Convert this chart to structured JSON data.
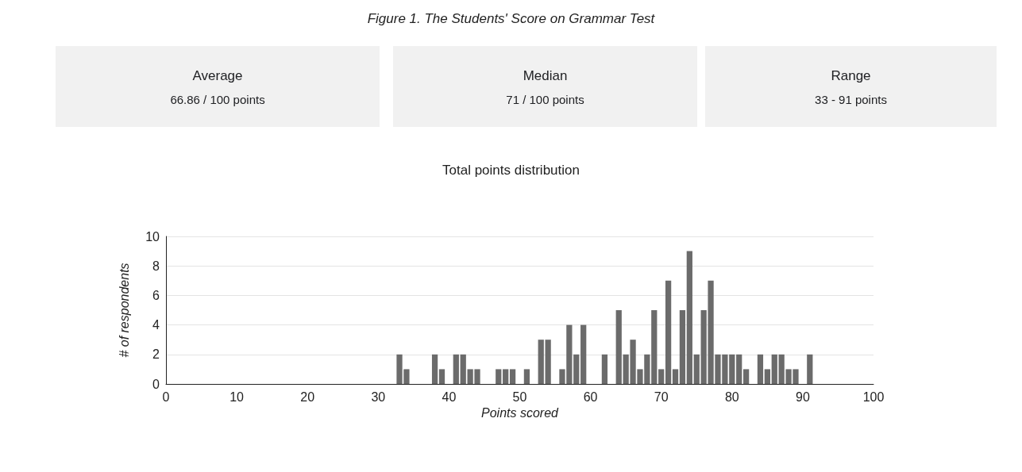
{
  "chart_data": {
    "type": "bar",
    "title": "Figure 1. The Students' Score on Grammar Test",
    "subtitle": "Total points distribution",
    "xlabel": "Points scored",
    "ylabel": "# of respondents",
    "annotations": [
      "Average",
      "66.86 / 100 points",
      "Median",
      "71 / 100 points",
      "Range",
      "33 - 91 points"
    ],
    "x": [
      33,
      34,
      38,
      39,
      41,
      42,
      43,
      44,
      47,
      48,
      49,
      51,
      53,
      54,
      56,
      57,
      58,
      59,
      62,
      64,
      65,
      66,
      67,
      68,
      69,
      70,
      71,
      72,
      73,
      74,
      75,
      76,
      77,
      78,
      79,
      80,
      81,
      82,
      84,
      85,
      86,
      87,
      88,
      89,
      91
    ],
    "values": [
      2,
      1,
      2,
      1,
      2,
      2,
      1,
      1,
      1,
      1,
      1,
      1,
      3,
      3,
      1,
      4,
      2,
      4,
      2,
      5,
      2,
      3,
      1,
      2,
      5,
      1,
      7,
      1,
      5,
      9,
      2,
      5,
      7,
      2,
      2,
      2,
      2,
      1,
      2,
      1,
      2,
      2,
      1,
      1,
      2
    ],
    "color": "#6b6b6b",
    "xlim": [
      0,
      100
    ],
    "xticks": [
      0,
      10,
      20,
      30,
      40,
      50,
      60,
      70,
      80,
      90,
      100
    ],
    "ylim": [
      0,
      10
    ],
    "yticks": [
      0,
      2,
      4,
      6,
      8,
      10
    ],
    "grid": "y"
  }
}
